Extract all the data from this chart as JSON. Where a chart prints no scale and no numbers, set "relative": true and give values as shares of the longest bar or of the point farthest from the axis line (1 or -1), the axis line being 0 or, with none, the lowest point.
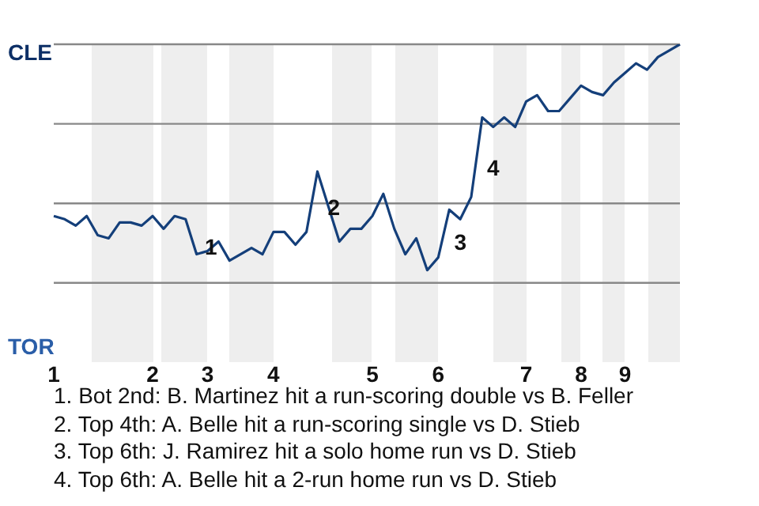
{
  "chart_data": {
    "type": "line",
    "relative": true,
    "categories": [
      "1",
      null,
      null,
      null,
      null,
      null,
      null,
      null,
      null,
      "2",
      null,
      null,
      null,
      null,
      "3",
      null,
      null,
      null,
      null,
      null,
      "4",
      null,
      null,
      null,
      null,
      null,
      null,
      null,
      null,
      "5",
      null,
      null,
      null,
      null,
      null,
      "6",
      null,
      null,
      null,
      null,
      null,
      null,
      null,
      "7",
      null,
      null,
      null,
      null,
      "8",
      null,
      null,
      null,
      "9",
      null,
      null,
      null,
      null,
      null
    ],
    "series": [
      {
        "color": "#143f7a",
        "values": [
          -0.08,
          -0.1,
          -0.14,
          -0.08,
          -0.2,
          -0.22,
          -0.12,
          -0.12,
          -0.14,
          -0.08,
          -0.16,
          -0.08,
          -0.1,
          -0.32,
          -0.3,
          -0.24,
          -0.36,
          -0.32,
          -0.28,
          -0.32,
          -0.18,
          -0.18,
          -0.26,
          -0.18,
          0.2,
          -0.02,
          -0.24,
          -0.16,
          -0.16,
          -0.08,
          0.06,
          -0.16,
          -0.32,
          -0.22,
          -0.42,
          -0.34,
          -0.04,
          -0.1,
          0.04,
          0.54,
          0.48,
          0.54,
          0.48,
          0.64,
          0.68,
          0.58,
          0.58,
          0.66,
          0.74,
          0.7,
          0.68,
          0.76,
          0.82,
          0.88,
          0.84,
          0.92,
          0.96,
          1
        ]
      }
    ],
    "ref_lines": [
      {
        "axis": "y",
        "value": 1,
        "color": "#888888"
      },
      {
        "axis": "y",
        "value": 0.5,
        "color": "#888888"
      },
      {
        "axis": "y",
        "value": 0,
        "color": "#888888"
      },
      {
        "axis": "y",
        "value": -0.5,
        "color": "#888888"
      }
    ],
    "legend": false,
    "marker": "none",
    "line_style": "solid",
    "annotations": [
      "CLE",
      "TOR",
      "1",
      "2",
      "3",
      "4",
      "1. Bot 2nd: B. Martinez hit a run-scoring double vs B. Feller",
      "2. Top 4th: A. Belle hit a run-scoring single vs D. Stieb",
      "3. Top 6th: J. Ramirez hit a solo home run vs D. Stieb",
      "4. Top 6th: A. Belle hit a 2-run home run vs D. Stieb"
    ]
  }
}
